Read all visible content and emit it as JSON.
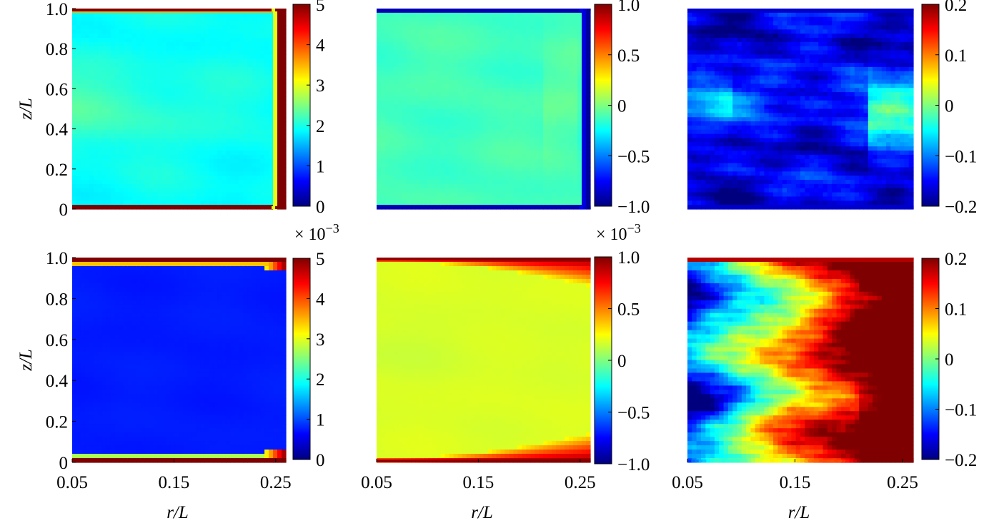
{
  "figure": {
    "colormap": [
      "#00007f",
      "#0000ff",
      "#007fff",
      "#00ffff",
      "#7fff7f",
      "#ffff00",
      "#ff7f00",
      "#ff0000",
      "#7f0000"
    ]
  },
  "chart_data": [
    {
      "type": "heatmap",
      "panel": "row1-col1",
      "xlabel": "",
      "ylabel": "z/L",
      "xlim": [
        0.05,
        0.26
      ],
      "ylim": [
        0,
        1
      ],
      "yticks": [
        "0",
        "0.2",
        "0.4",
        "0.6",
        "0.8",
        "1.0"
      ],
      "xticks": [],
      "colorbar": {
        "range": [
          0,
          5
        ],
        "ticks": [
          "0",
          "1",
          "2",
          "3",
          "4",
          "5"
        ],
        "multiplier": ""
      },
      "field": {
        "interior": 1.9,
        "center_bulge": 2.3,
        "wall_top": 5,
        "wall_bottom": 5,
        "wall_right": 5
      }
    },
    {
      "type": "heatmap",
      "panel": "row1-col2",
      "xlabel": "",
      "ylabel": "",
      "xlim": [
        0.05,
        0.26
      ],
      "ylim": [
        0,
        1
      ],
      "yticks": [],
      "xticks": [],
      "colorbar": {
        "range": [
          -1.0,
          1.0
        ],
        "ticks": [
          "−1.0",
          "−0.5",
          "0",
          "0.5",
          "1.0"
        ],
        "multiplier": ""
      },
      "field": {
        "interior": -0.15,
        "wall_top": -1.0,
        "wall_bottom": -1.0,
        "wall_right": -1.0
      }
    },
    {
      "type": "heatmap",
      "panel": "row1-col3",
      "xlabel": "",
      "ylabel": "",
      "xlim": [
        0.05,
        0.26
      ],
      "ylim": [
        0,
        1
      ],
      "yticks": [],
      "xticks": [],
      "colorbar": {
        "range": [
          -0.2,
          0.2
        ],
        "ticks": [
          "−0.2",
          "−0.1",
          "0",
          "0.1",
          "0.2"
        ],
        "multiplier": ""
      },
      "field": {
        "interior": -0.16,
        "light_band_z": [
          0.45,
          0.65
        ],
        "light_value": -0.07,
        "wall_right": -0.03
      }
    },
    {
      "type": "heatmap",
      "panel": "row2-col1",
      "xlabel": "r/L",
      "ylabel": "z/L",
      "xlim": [
        0.05,
        0.26
      ],
      "ylim": [
        0,
        1
      ],
      "yticks": [
        "0",
        "0.2",
        "0.4",
        "0.6",
        "0.8",
        "1.0"
      ],
      "xticks": [
        "0.05",
        "0.15",
        "0.25"
      ],
      "colorbar": {
        "range": [
          0,
          5
        ],
        "ticks": [
          "0",
          "1",
          "2",
          "3",
          "4",
          "5"
        ],
        "multiplier": "× 10−3"
      },
      "field": {
        "interior": 0.7,
        "wall_top": 5,
        "wall_bottom": 5,
        "wall_right": 3
      }
    },
    {
      "type": "heatmap",
      "panel": "row2-col2",
      "xlabel": "r/L",
      "ylabel": "",
      "xlim": [
        0.05,
        0.26
      ],
      "ylim": [
        0,
        1
      ],
      "yticks": [],
      "xticks": [
        "0.05",
        "0.15",
        "0.25"
      ],
      "colorbar": {
        "range": [
          -1.0,
          1.0
        ],
        "ticks": [
          "−1.0",
          "−0.5",
          "0",
          "0.5",
          "1.0"
        ],
        "multiplier": "× 10−3"
      },
      "field": {
        "interior": 0.2,
        "wall_top": 1.0,
        "wall_bottom": 1.0
      }
    },
    {
      "type": "heatmap",
      "panel": "row2-col3",
      "xlabel": "r/L",
      "ylabel": "",
      "xlim": [
        0.05,
        0.26
      ],
      "ylim": [
        0,
        1
      ],
      "yticks": [],
      "xticks": [
        "0.05",
        "0.15",
        "0.25"
      ],
      "colorbar": {
        "range": [
          -0.2,
          0.2
        ],
        "ticks": [
          "−0.2",
          "−0.1",
          "0",
          "0.1",
          "0.2"
        ],
        "multiplier": ""
      },
      "field": {
        "left_value": -0.18,
        "right_value": 0.18,
        "dark_blue_patches_z": [
          0.85,
          0.3
        ]
      }
    }
  ]
}
